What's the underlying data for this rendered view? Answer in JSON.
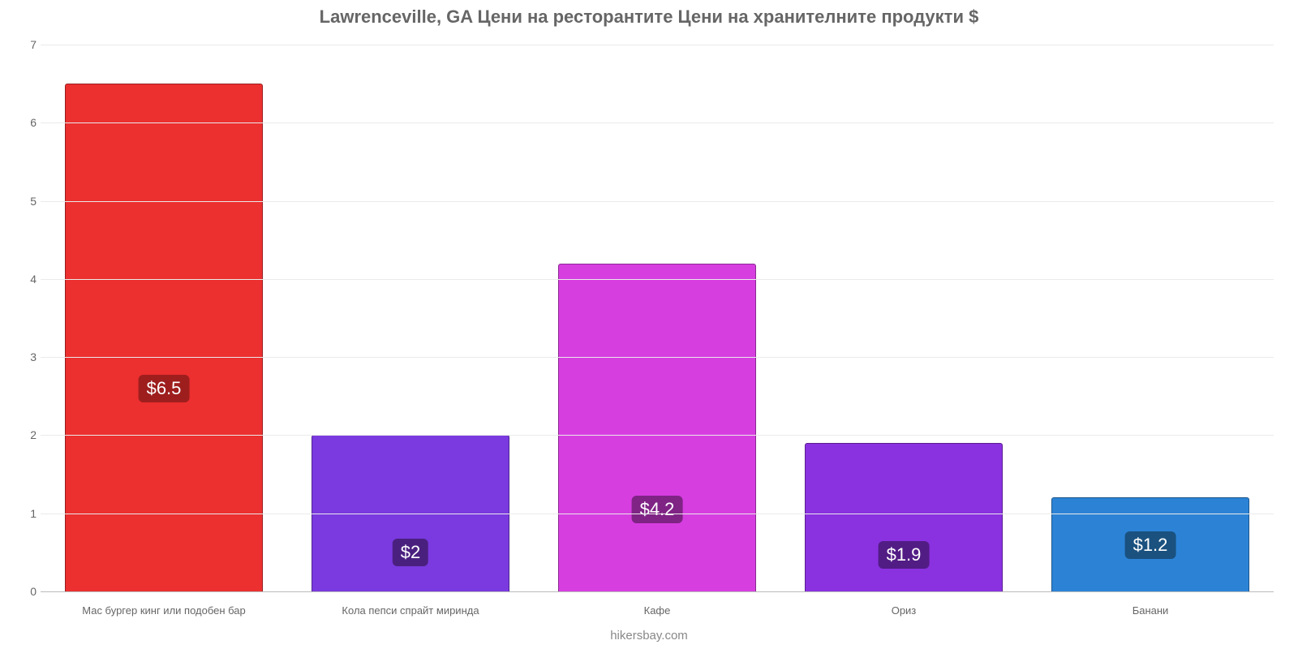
{
  "chart": {
    "type": "bar",
    "title": "Lawrenceville, GA Цени на ресторантите Цени на хранителните продукти $",
    "title_color": "#666666",
    "title_fontsize": 22,
    "watermark": "hikersbay.com",
    "watermark_color": "#888888",
    "watermark_fontsize": 15,
    "background_color": "#ffffff",
    "grid_color": "#eaeaea",
    "axis_color": "#bbbbbb",
    "tick_color": "#666666",
    "tick_fontsize": 14,
    "xlabel_color": "#666666",
    "xlabel_fontsize": 13,
    "value_label_fontsize": 22,
    "value_label_text_color": "#ffffff",
    "ylim": [
      0,
      7
    ],
    "yticks": [
      0,
      1,
      2,
      3,
      4,
      5,
      6,
      7
    ],
    "bar_width_pct": 80,
    "categories": [
      "Мас бургер кинг или подобен бар",
      "Кола пепси спрайт миринда",
      "Кафе",
      "Ориз",
      "Банани"
    ],
    "values": [
      6.5,
      2.0,
      4.2,
      1.9,
      1.2
    ],
    "value_labels": [
      "$6.5",
      "$2",
      "$4.2",
      "$1.9",
      "$1.2"
    ],
    "bar_colors": [
      "#ec2f2f",
      "#7a3adf",
      "#d63ee0",
      "#8a31e0",
      "#2c83d6"
    ],
    "label_bg_colors": [
      "#9e1e1e",
      "#4a207f",
      "#7f2385",
      "#521c85",
      "#1a517f"
    ],
    "label_offset_from_bottom_pct": [
      40,
      25,
      25,
      25,
      50
    ]
  }
}
